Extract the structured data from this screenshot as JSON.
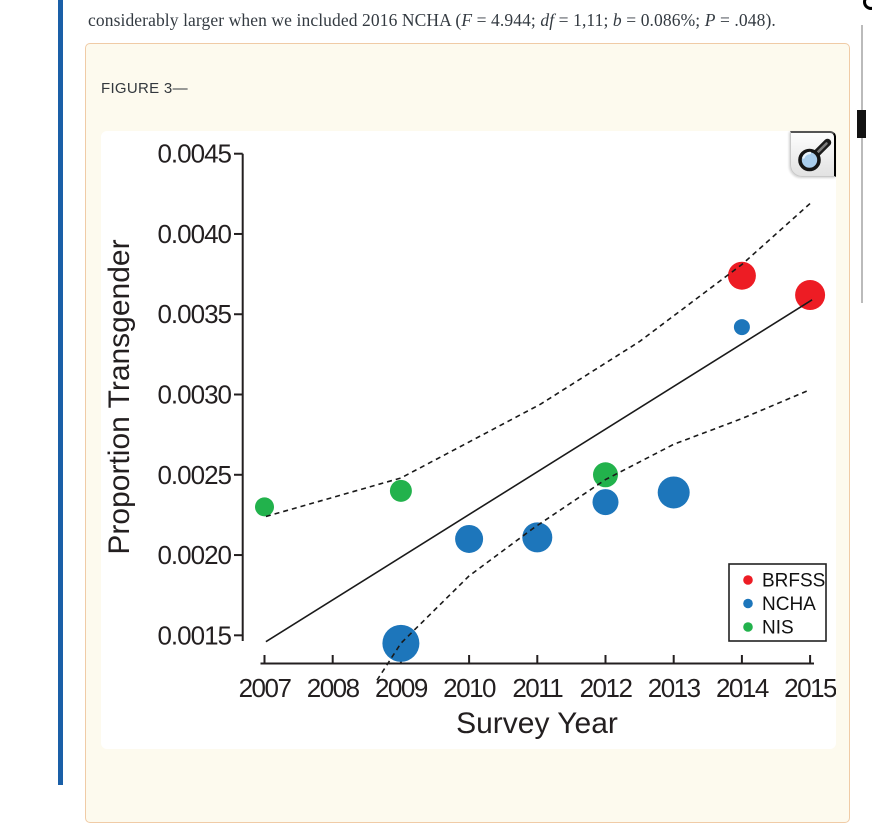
{
  "paragraph": {
    "full_text": "considerably larger when we included 2016 NCHA (F = 4.944; df = 1,11; b = 0.086%; P = .048).",
    "segments": [
      {
        "text": "considerably larger when we included 2016 NCHA (",
        "italic": false
      },
      {
        "text": "F",
        "italic": true
      },
      {
        "text": " = 4.944; ",
        "italic": false
      },
      {
        "text": "df",
        "italic": true
      },
      {
        "text": " = 1,11; ",
        "italic": false
      },
      {
        "text": "b",
        "italic": true
      },
      {
        "text": " = 0.086%; ",
        "italic": false
      },
      {
        "text": "P",
        "italic": true
      },
      {
        "text": " = .048).",
        "italic": false
      }
    ]
  },
  "figure": {
    "label": "FIGURE 3—",
    "card_bg": "#fdfaee",
    "card_border": "#f0cba6"
  },
  "zoom_button": {
    "icon": "magnifier-icon"
  },
  "accent_color": "#1a5fa7",
  "chart_data": {
    "type": "scatter",
    "title": "",
    "xlabel": "Survey Year",
    "ylabel": "Proportion Transgender",
    "xlim": [
      2006.6,
      2015.45
    ],
    "ylim": [
      0.00136,
      0.00455
    ],
    "xticks": [
      2007,
      2008,
      2009,
      2010,
      2011,
      2012,
      2013,
      2014,
      2015
    ],
    "yticks": [
      0.0015,
      0.002,
      0.0025,
      0.003,
      0.0035,
      0.004,
      0.0045
    ],
    "ytick_labels": [
      "0.0015",
      "0.0020",
      "0.0025",
      "0.0030",
      "0.0035",
      "0.0040",
      "0.0045"
    ],
    "grid": false,
    "legend": {
      "position": "bottom-right"
    },
    "series": [
      {
        "name": "BRFSS",
        "color": "#ed1c24",
        "points": [
          {
            "x": 2014,
            "y": 0.00374,
            "r": 14
          },
          {
            "x": 2015,
            "y": 0.00362,
            "r": 15
          }
        ]
      },
      {
        "name": "NCHA",
        "color": "#1d76bb",
        "points": [
          {
            "x": 2009,
            "y": 0.00145,
            "r": 18.5
          },
          {
            "x": 2010,
            "y": 0.0021,
            "r": 14
          },
          {
            "x": 2011,
            "y": 0.00211,
            "r": 15
          },
          {
            "x": 2012,
            "y": 0.00233,
            "r": 13
          },
          {
            "x": 2013,
            "y": 0.00239,
            "r": 16
          },
          {
            "x": 2014,
            "y": 0.00342,
            "r": 8
          }
        ]
      },
      {
        "name": "NIS",
        "color": "#22b24c",
        "points": [
          {
            "x": 2007,
            "y": 0.0023,
            "r": 9.5
          },
          {
            "x": 2009,
            "y": 0.0024,
            "r": 11
          },
          {
            "x": 2012,
            "y": 0.0025,
            "r": 12.5
          }
        ]
      }
    ],
    "fit_line": {
      "style": "solid",
      "points": [
        [
          2007.02,
          0.00146
        ],
        [
          2015.03,
          0.00359
        ]
      ]
    },
    "ci_upper": {
      "style": "dashed",
      "points": [
        [
          2007.02,
          0.00224
        ],
        [
          2009,
          0.00248
        ],
        [
          2011.05,
          0.00294
        ],
        [
          2012.5,
          0.00333
        ],
        [
          2014,
          0.00381
        ],
        [
          2015,
          0.00419
        ]
      ]
    },
    "ci_lower": {
      "style": "dashed",
      "points": [
        [
          2008.65,
          0.00122
        ],
        [
          2009,
          0.00145
        ],
        [
          2010,
          0.00187
        ],
        [
          2010.95,
          0.00217
        ],
        [
          2012,
          0.00247
        ],
        [
          2013,
          0.00269
        ],
        [
          2014,
          0.00285
        ],
        [
          2015,
          0.00303
        ]
      ]
    }
  }
}
